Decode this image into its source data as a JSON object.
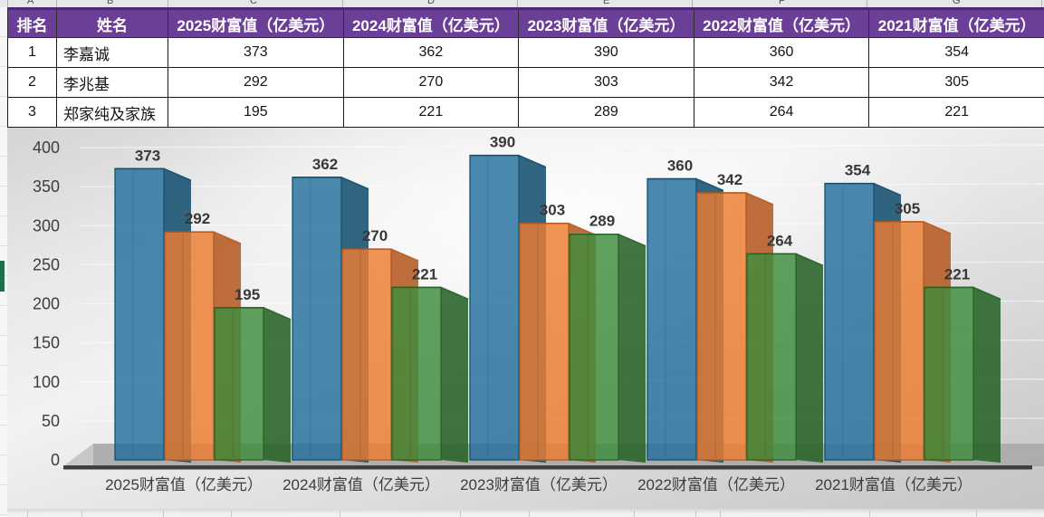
{
  "excel": {
    "column_letters": [
      "A",
      "B",
      "C",
      "D",
      "E",
      "F",
      "G"
    ],
    "selection_marker_color": "#1e7145"
  },
  "table": {
    "header_bg": "#6b3e98",
    "columns": [
      "排名",
      "姓名",
      "2025财富值（亿美元）",
      "2024财富值（亿美元）",
      "2023财富值（亿美元）",
      "2022财富值（亿美元）",
      "2021财富值（亿美元）"
    ],
    "rows": [
      {
        "rank": "1",
        "name": "李嘉诚",
        "values": [
          "373",
          "362",
          "390",
          "360",
          "354"
        ]
      },
      {
        "rank": "2",
        "name": "李兆基",
        "values": [
          "292",
          "270",
          "303",
          "342",
          "305"
        ]
      },
      {
        "rank": "3",
        "name": "郑家纯及家族",
        "values": [
          "195",
          "221",
          "289",
          "264",
          "221"
        ]
      }
    ]
  },
  "chart_data": {
    "type": "bar",
    "subtype": "3d-clustered-column",
    "title": "",
    "categories": [
      "2025财富值（亿美元）",
      "2024财富值（亿美元）",
      "2023财富值（亿美元）",
      "2022财富值（亿美元）",
      "2021财富值（亿美元）"
    ],
    "series": [
      {
        "name": "李嘉诚",
        "color": "#256f9e",
        "side_color": "#14506f",
        "values": [
          373,
          362,
          390,
          360,
          354
        ]
      },
      {
        "name": "李兆基",
        "color": "#ed7d31",
        "side_color": "#b65a22",
        "values": [
          292,
          270,
          303,
          342,
          305
        ]
      },
      {
        "name": "郑家纯及家族",
        "color": "#3e8c3c",
        "side_color": "#276327",
        "values": [
          195,
          221,
          289,
          264,
          221
        ]
      }
    ],
    "ylim": [
      0,
      400
    ],
    "yticks": [
      0,
      50,
      100,
      150,
      200,
      250,
      300,
      350,
      400
    ],
    "grid": true,
    "legend": "none",
    "data_labels": true,
    "floor_color": "#ababab",
    "axis_edge_color": "#3f3f3f",
    "label_color": "#383838"
  }
}
